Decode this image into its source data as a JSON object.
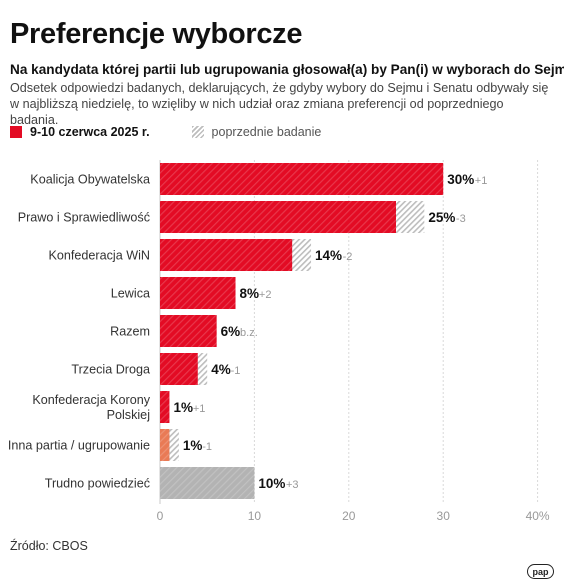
{
  "title": "Preferencje wyborcze",
  "subtitle": "Na kandydata której partii lub ugrupowania głosował(a) by Pan(i) w wyborach do Sejmu?",
  "description": "Odsetek odpowiedzi badanych, deklarujących, że gdyby wybory do Sejmu i Senatu odbywały się w najbliższą niedzielę, to wzięliby w nich udział oraz zmiana preferencji od poprzedniego badania.",
  "legend": {
    "current": "9-10 czerwca 2025 r.",
    "previous": "poprzednie badanie"
  },
  "source": "Źródło: CBOS",
  "logo_text": "pap",
  "colors": {
    "current": "#e30b24",
    "small_party": "#e97a55",
    "undecided": "#b3b3b3",
    "hatch": "#bdbdbd"
  },
  "chart_data": {
    "type": "bar",
    "orientation": "horizontal",
    "categories": [
      "Koalicja Obywatelska",
      "Prawo i Sprawiedliwość",
      "Konfederacja WiN",
      "Lewica",
      "Razem",
      "Trzecia Droga",
      "Konfederacja Korony Polskiej",
      "Inna partia / ugrupowanie",
      "Trudno powiedzieć"
    ],
    "category_lines": [
      [
        "Koalicja Obywatelska"
      ],
      [
        "Prawo i Sprawiedliwość"
      ],
      [
        "Konfederacja WiN"
      ],
      [
        "Lewica"
      ],
      [
        "Razem"
      ],
      [
        "Trzecia Droga"
      ],
      [
        "Konfederacja Korony",
        "Polskiej"
      ],
      [
        "Inna partia / ugrupowanie"
      ],
      [
        "Trudno powiedzieć"
      ]
    ],
    "series": [
      {
        "name": "9-10 czerwca 2025 r.",
        "values": [
          30,
          25,
          14,
          8,
          6,
          4,
          1,
          1,
          10
        ]
      },
      {
        "name": "poprzednie badanie",
        "values": [
          29,
          28,
          16,
          6,
          6,
          5,
          0,
          2,
          7
        ]
      }
    ],
    "value_labels": [
      "30%",
      "25%",
      "14%",
      "8%",
      "6%",
      "4%",
      "1%",
      "1%",
      "10%"
    ],
    "change_labels": [
      "+1",
      "-3",
      "-2",
      "+2",
      "b.z.",
      "-1",
      "+1",
      "-1",
      "+3"
    ],
    "x_ticks": [
      0,
      10,
      20,
      30,
      40
    ],
    "x_tick_labels": [
      "0",
      "10",
      "20",
      "30",
      "40%"
    ],
    "xlim": [
      0,
      40
    ],
    "grid": true
  }
}
